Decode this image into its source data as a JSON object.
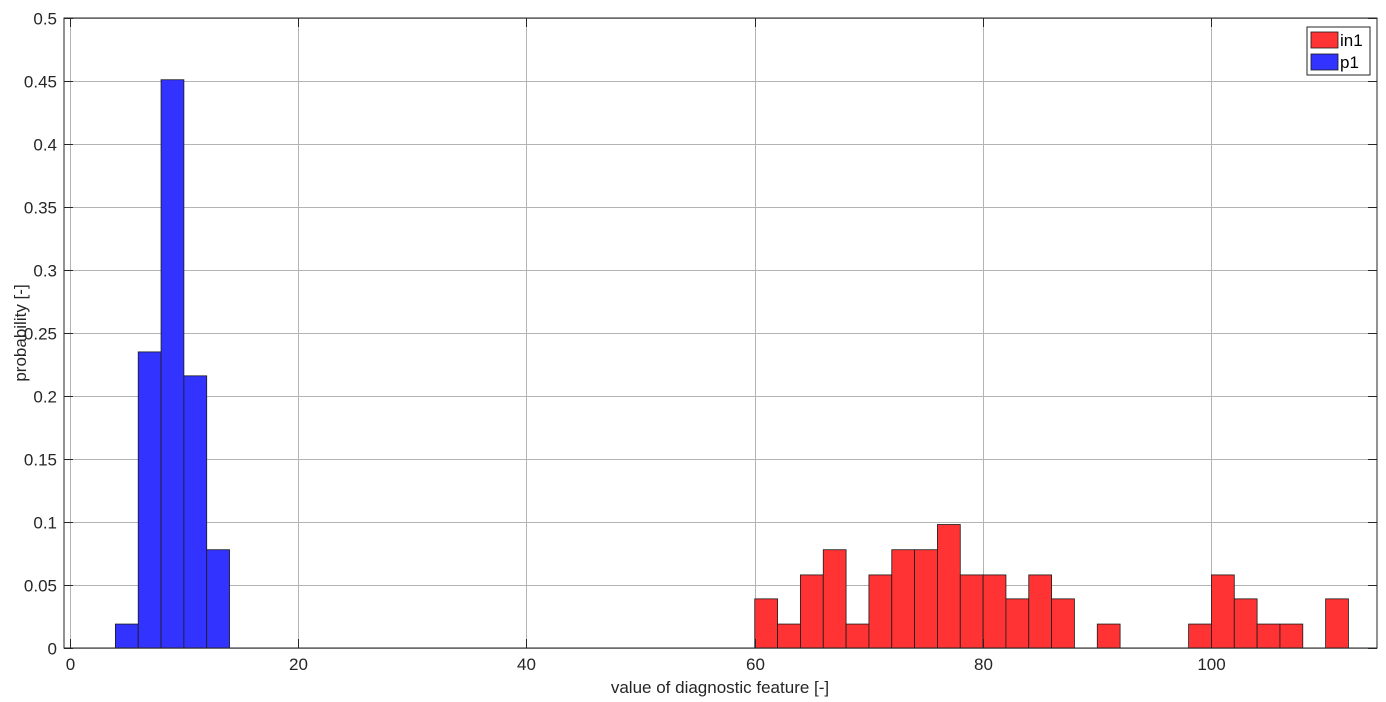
{
  "chart_data": {
    "type": "bar",
    "title": "",
    "xlabel": "value of diagnostic feature [-]",
    "ylabel": "probability [-]",
    "xlim": [
      -0.5,
      114.5
    ],
    "ylim": [
      0,
      0.5
    ],
    "xticks": [
      0,
      20,
      40,
      60,
      80,
      100
    ],
    "yticks": [
      0,
      0.05,
      0.1,
      0.15,
      0.2,
      0.25,
      0.3,
      0.35,
      0.4,
      0.45,
      0.5
    ],
    "xtick_labels": [
      "0",
      "20",
      "40",
      "60",
      "80",
      "100"
    ],
    "ytick_labels": [
      "0",
      "0.05",
      "0.1",
      "0.15",
      "0.2",
      "0.25",
      "0.3",
      "0.35",
      "0.4",
      "0.45",
      "0.5"
    ],
    "grid": true,
    "legend_position": "top-right",
    "series": [
      {
        "name": "in1",
        "color": "#ff3333",
        "bins": [
          {
            "x0": 60,
            "x1": 62,
            "value": 0.039
          },
          {
            "x0": 62,
            "x1": 64,
            "value": 0.019
          },
          {
            "x0": 64,
            "x1": 66,
            "value": 0.058
          },
          {
            "x0": 66,
            "x1": 68,
            "value": 0.078
          },
          {
            "x0": 68,
            "x1": 70,
            "value": 0.019
          },
          {
            "x0": 70,
            "x1": 72,
            "value": 0.058
          },
          {
            "x0": 72,
            "x1": 74,
            "value": 0.078
          },
          {
            "x0": 74,
            "x1": 76,
            "value": 0.078
          },
          {
            "x0": 76,
            "x1": 78,
            "value": 0.098
          },
          {
            "x0": 78,
            "x1": 80,
            "value": 0.058
          },
          {
            "x0": 80,
            "x1": 82,
            "value": 0.058
          },
          {
            "x0": 82,
            "x1": 84,
            "value": 0.039
          },
          {
            "x0": 84,
            "x1": 86,
            "value": 0.058
          },
          {
            "x0": 86,
            "x1": 88,
            "value": 0.039
          },
          {
            "x0": 90,
            "x1": 92,
            "value": 0.019
          },
          {
            "x0": 98,
            "x1": 100,
            "value": 0.019
          },
          {
            "x0": 100,
            "x1": 102,
            "value": 0.058
          },
          {
            "x0": 102,
            "x1": 104,
            "value": 0.039
          },
          {
            "x0": 104,
            "x1": 106,
            "value": 0.019
          },
          {
            "x0": 106,
            "x1": 108,
            "value": 0.019
          },
          {
            "x0": 110,
            "x1": 112,
            "value": 0.039
          }
        ]
      },
      {
        "name": "p1",
        "color": "#3333ff",
        "bins": [
          {
            "x0": 4,
            "x1": 6,
            "value": 0.019
          },
          {
            "x0": 6,
            "x1": 8,
            "value": 0.235
          },
          {
            "x0": 8,
            "x1": 10,
            "value": 0.451
          },
          {
            "x0": 10,
            "x1": 12,
            "value": 0.216
          },
          {
            "x0": 12,
            "x1": 14,
            "value": 0.078
          }
        ]
      }
    ]
  }
}
